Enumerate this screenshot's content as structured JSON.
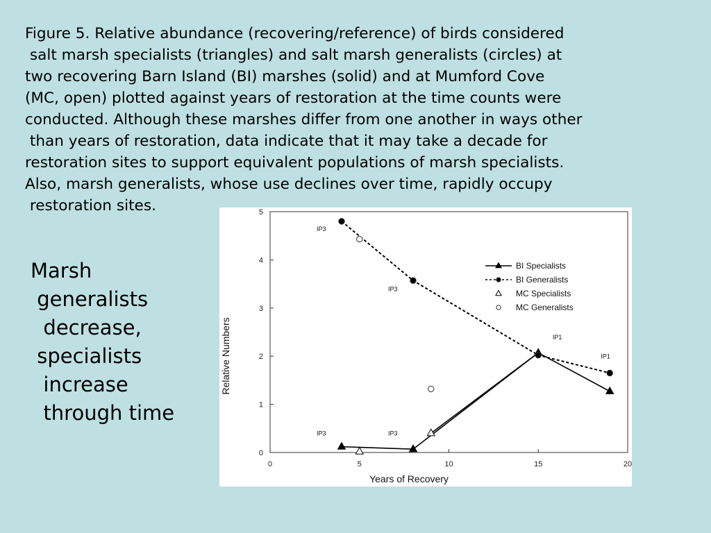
{
  "caption": {
    "lines": [
      "Figure 5. Relative abundance (recovering/reference) of birds considered",
      " salt marsh specialists (triangles) and salt marsh generalists (circles) at",
      "two recovering Barn Island (BI) marshes (solid) and at Mumford Cove",
      "(MC, open) plotted against years of restoration at the time counts were",
      "conducted. Although these marshes differ from one another in ways other",
      " than years of restoration, data indicate that it may take a decade for",
      "restoration sites to support equivalent populations of marsh specialists.",
      "Also, marsh generalists, whose use declines over time, rapidly occupy",
      " restoration sites."
    ]
  },
  "side_text": {
    "lines": [
      "Marsh",
      " generalists",
      "  decrease,",
      " specialists",
      "  increase",
      "  through time"
    ]
  },
  "chart_data": {
    "type": "scatter",
    "xlabel": "Years of Recovery",
    "ylabel": "Relative Numbers",
    "xlim": [
      0,
      20
    ],
    "ylim": [
      0,
      5
    ],
    "xticks": [
      0,
      5,
      10,
      15,
      20
    ],
    "yticks": [
      0,
      1,
      2,
      3,
      4,
      5
    ],
    "grid": false,
    "legend_position": "right",
    "series": [
      {
        "name": "BI Specialists",
        "marker": "triangle",
        "fill": "solid",
        "line": "solid",
        "color": "#000000",
        "points": [
          [
            4,
            0.12
          ],
          [
            8,
            0.07
          ],
          [
            15,
            2.07
          ],
          [
            19,
            1.27
          ]
        ]
      },
      {
        "name": "BI Generalists",
        "marker": "circle",
        "fill": "solid",
        "line": "dashed",
        "color": "#000000",
        "points": [
          [
            4,
            4.8
          ],
          [
            8,
            3.57
          ],
          [
            15,
            2.02
          ],
          [
            19,
            1.65
          ]
        ]
      },
      {
        "name": "MC Specialists",
        "marker": "triangle",
        "fill": "open",
        "line": "none",
        "color": "#000000",
        "points": [
          [
            5,
            0.02
          ],
          [
            9,
            0.4
          ]
        ]
      },
      {
        "name": "MC Generalists",
        "marker": "circle",
        "fill": "open",
        "line": "none",
        "color": "#000000",
        "points": [
          [
            5,
            4.43
          ],
          [
            9,
            1.32
          ]
        ]
      }
    ],
    "connector": {
      "style": "solid",
      "points": [
        [
          9,
          0.4
        ],
        [
          15,
          2.07
        ]
      ]
    },
    "annotations": [
      {
        "text": "IP3",
        "x": 2.6,
        "y": 4.6
      },
      {
        "text": "IP3",
        "x": 6.6,
        "y": 3.35
      },
      {
        "text": "IP1",
        "x": 15.8,
        "y": 2.35
      },
      {
        "text": "IP1",
        "x": 18.5,
        "y": 1.95
      },
      {
        "text": "IP3",
        "x": 2.6,
        "y": 0.35
      },
      {
        "text": "IP3",
        "x": 6.6,
        "y": 0.35
      }
    ]
  }
}
